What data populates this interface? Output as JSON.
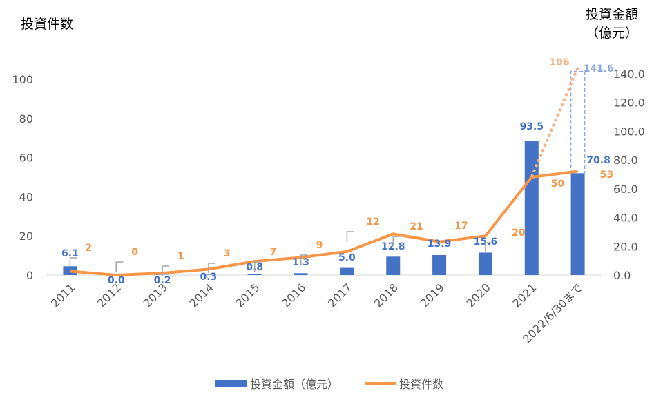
{
  "left_axis_title": "投資件数",
  "right_axis_title_line1": "投資金額",
  "right_axis_title_line2": "（億元）",
  "colors": {
    "bar": "#4472C4",
    "line": "#F79646",
    "bar_light": "#8EA9DB",
    "line_light": "#F4B183"
  },
  "chart_data": {
    "type": "bar+line",
    "categories": [
      "2011",
      "2012",
      "2013",
      "2014",
      "2015",
      "2016",
      "2017",
      "2018",
      "2019",
      "2020",
      "2021",
      "2022/6/30まで"
    ],
    "series": [
      {
        "name": "投資金額（億元）",
        "type": "bar",
        "axis": "right",
        "values": [
          6.1,
          0.0,
          0.2,
          0.3,
          0.8,
          1.3,
          5.0,
          12.8,
          13.9,
          15.6,
          93.5,
          70.8
        ],
        "labels": [
          "6.1",
          "0.0",
          "0.2",
          "0.3",
          "0.8",
          "1.3",
          "5.0",
          "12.8",
          "13.9",
          "15.6",
          "93.5",
          "70.8"
        ]
      },
      {
        "name": "投資件数",
        "type": "line",
        "axis": "left",
        "values": [
          2,
          0,
          1,
          3,
          7,
          9,
          12,
          21,
          17,
          20,
          50,
          53
        ],
        "labels": [
          "2",
          "0",
          "1",
          "3",
          "7",
          "9",
          "12",
          "21",
          "17",
          "20",
          "50",
          "53"
        ]
      }
    ],
    "projection": {
      "style": "dotted",
      "line_value": 106,
      "line_label": "106",
      "bar_value": 141.6,
      "bar_label": "141.6"
    },
    "left_axis": {
      "ticks": [
        "0",
        "20",
        "40",
        "60",
        "80",
        "100"
      ],
      "range": [
        0,
        100
      ]
    },
    "right_axis": {
      "ticks": [
        "0.0",
        "20.0",
        "40.0",
        "60.0",
        "80.0",
        "100.0",
        "120.0",
        "140.0"
      ],
      "range": [
        0,
        140
      ]
    },
    "legend": {
      "position": "bottom",
      "items": [
        "投資金額（億元）",
        "投資件数"
      ]
    },
    "grid": false
  }
}
